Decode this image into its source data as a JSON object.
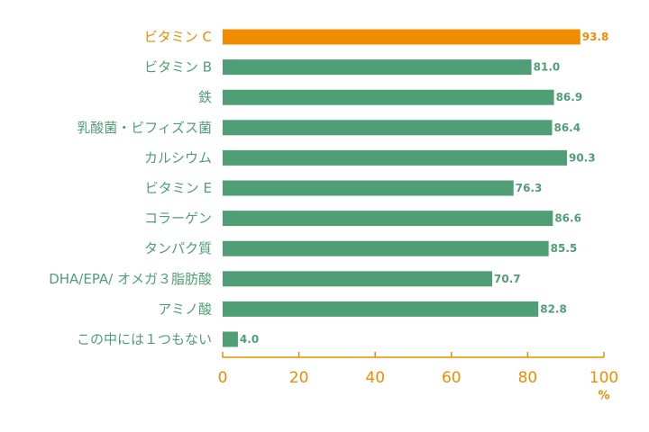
{
  "chart_data": {
    "type": "bar",
    "orientation": "horizontal",
    "categories": [
      "ビタミン C",
      "ビタミン B",
      "鉄",
      "乳酸菌・ビフィズス菌",
      "カルシウム",
      "ビタミン E",
      "コラーゲン",
      "タンパク質",
      "DHA/EPA/ オメガ３脂肪酸",
      "アミノ酸",
      "この中には１つもない"
    ],
    "values": [
      93.8,
      81.0,
      86.9,
      86.4,
      90.3,
      76.3,
      86.6,
      85.5,
      70.7,
      82.8,
      4.0
    ],
    "value_labels": [
      "93.8",
      "81.0",
      "86.9",
      "86.4",
      "90.3",
      "76.3",
      "86.6",
      "85.5",
      "70.7",
      "82.8",
      "4.0"
    ],
    "highlight_index": 0,
    "xlim": [
      0,
      100
    ],
    "xticks": [
      "0",
      "20",
      "40",
      "60",
      "80",
      "100"
    ],
    "unit": "%",
    "grid": false,
    "colors": {
      "bar": "#4f9e76",
      "highlight": "#f08c00",
      "category_text": "#4f9e76",
      "highlight_text": "#f08c00",
      "axis": "#f08c00"
    }
  }
}
